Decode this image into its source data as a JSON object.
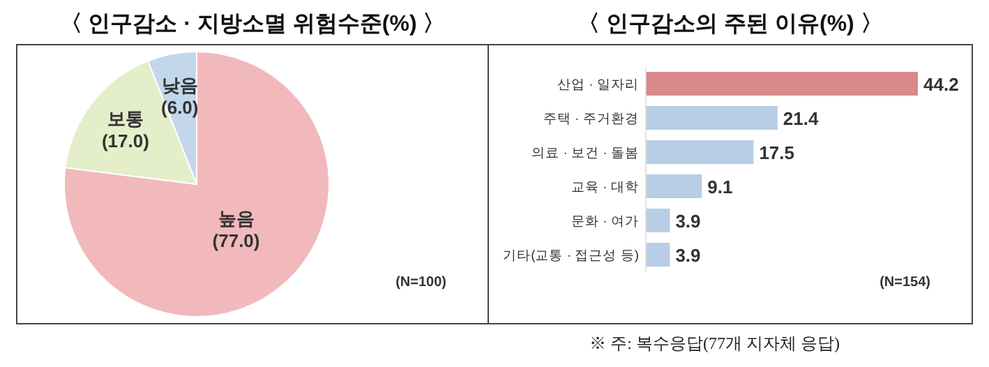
{
  "chart_data": [
    {
      "type": "pie",
      "title": "〈 인구감소 · 지방소멸 위험수준(%) 〉",
      "categories": [
        "높음",
        "보통",
        "낮음"
      ],
      "values": [
        77.0,
        17.0,
        6.0
      ],
      "colors": [
        "#f2b9bc",
        "#e4eec9",
        "#c3d7ec"
      ],
      "value_labels": [
        "(77.0)",
        "(17.0)",
        "(6.0)"
      ],
      "annotations": [
        "(N=100)"
      ]
    },
    {
      "type": "bar",
      "orientation": "horizontal",
      "title": "〈 인구감소의 주된 이유(%) 〉",
      "categories": [
        "산업 · 일자리",
        "주택 · 주거환경",
        "의료 · 보건 · 돌봄",
        "교육 · 대학",
        "문화 · 여가",
        "기타(교통 · 접근성 등)"
      ],
      "values": [
        44.2,
        21.4,
        17.5,
        9.1,
        3.9,
        3.9
      ],
      "colors": [
        "#d9888c",
        "#b8cde6",
        "#b8cde6",
        "#b8cde6",
        "#b8cde6",
        "#b8cde6"
      ],
      "data_labels": true,
      "annotations": [
        "(N=154)",
        "※ 주: 복수응답(77개 지자체 응답)"
      ]
    }
  ]
}
